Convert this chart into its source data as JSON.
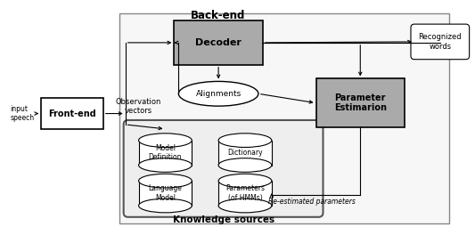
{
  "white": "#ffffff",
  "light_gray_fill": "#e8e8e8",
  "gray_box_fill": "#aaaaaa",
  "ks_fill": "#f0f0f0",
  "backend_fill": "#f5f5f5",
  "title": "Back-end",
  "caption": "Knowledge sources",
  "re_estimated_label": "Re-estimated parameters"
}
